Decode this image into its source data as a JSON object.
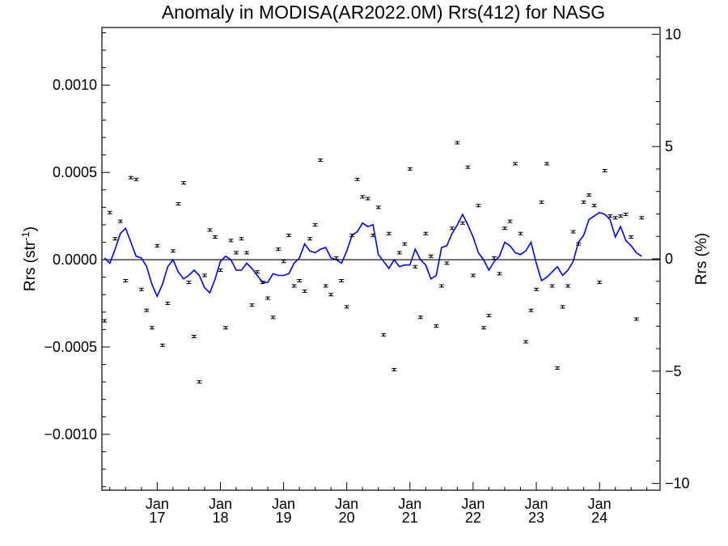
{
  "chart_data": {
    "type": "scatter",
    "title": "Anomaly in MODISA(AR2022.0M) Rrs(412) for NASG",
    "ylabel_left": "Rrs (str",
    "ylabel_left_sup": "-1",
    "ylabel_left_close": ")",
    "ylabel_right": "Rrs (%)",
    "x_start": "2016-03",
    "x_end": "2024-12",
    "ylim": [
      -0.00132,
      0.00133
    ],
    "ylim_right": [
      -10.3,
      10.3
    ],
    "zero_line": true,
    "legend": "none",
    "yticks_left": [
      {
        "value": 0.001,
        "label": "0.0010"
      },
      {
        "value": 0.0005,
        "label": "0.0005"
      },
      {
        "value": 0.0,
        "label": "0.0000"
      },
      {
        "value": -0.0005,
        "label": "−0.0005"
      },
      {
        "value": -0.001,
        "label": "−0.0010"
      }
    ],
    "yticks_right": [
      {
        "value": 10,
        "label": "10"
      },
      {
        "value": 5,
        "label": "5"
      },
      {
        "value": 0,
        "label": "0"
      },
      {
        "value": -5,
        "label": "−5"
      },
      {
        "value": -10,
        "label": "−10"
      }
    ],
    "xticks": [
      {
        "month": "2017-01",
        "line1": "Jan",
        "line2": "17"
      },
      {
        "month": "2018-01",
        "line1": "Jan",
        "line2": "18"
      },
      {
        "month": "2019-01",
        "line1": "Jan",
        "line2": "19"
      },
      {
        "month": "2020-01",
        "line1": "Jan",
        "line2": "20"
      },
      {
        "month": "2021-01",
        "line1": "Jan",
        "line2": "21"
      },
      {
        "month": "2022-01",
        "line1": "Jan",
        "line2": "22"
      },
      {
        "month": "2023-01",
        "line1": "Jan",
        "line2": "23"
      },
      {
        "month": "2024-01",
        "line1": "Jan",
        "line2": "24"
      }
    ],
    "series": [
      {
        "kind": "monthly_points_with_error_bars",
        "color": "#000000",
        "points": [
          {
            "month": "2016-03",
            "y": -0.00035
          },
          {
            "month": "2016-04",
            "y": 0.00027
          },
          {
            "month": "2016-05",
            "y": 0.00012
          },
          {
            "month": "2016-06",
            "y": 0.00022
          },
          {
            "month": "2016-07",
            "y": -0.00012
          },
          {
            "month": "2016-08",
            "y": 0.00047
          },
          {
            "month": "2016-09",
            "y": 0.00046
          },
          {
            "month": "2016-10",
            "y": -0.00017
          },
          {
            "month": "2016-11",
            "y": -0.00029
          },
          {
            "month": "2016-12",
            "y": -0.00039
          },
          {
            "month": "2017-01",
            "y": 8e-05
          },
          {
            "month": "2017-02",
            "y": -0.00049
          },
          {
            "month": "2017-03",
            "y": -0.00025
          },
          {
            "month": "2017-04",
            "y": 5e-05
          },
          {
            "month": "2017-05",
            "y": 0.00032
          },
          {
            "month": "2017-06",
            "y": 0.00044
          },
          {
            "month": "2017-07",
            "y": -0.00013
          },
          {
            "month": "2017-08",
            "y": -0.00044
          },
          {
            "month": "2017-09",
            "y": -0.0007
          },
          {
            "month": "2017-10",
            "y": -9e-05
          },
          {
            "month": "2017-11",
            "y": 0.00017
          },
          {
            "month": "2017-12",
            "y": 0.00013
          },
          {
            "month": "2018-01",
            "y": -6e-05
          },
          {
            "month": "2018-02",
            "y": -0.00039
          },
          {
            "month": "2018-03",
            "y": 0.00011
          },
          {
            "month": "2018-04",
            "y": 4e-05
          },
          {
            "month": "2018-05",
            "y": 0.00012
          },
          {
            "month": "2018-06",
            "y": 4e-05
          },
          {
            "month": "2018-07",
            "y": -0.00026
          },
          {
            "month": "2018-08",
            "y": -7e-05
          },
          {
            "month": "2018-09",
            "y": -0.00013
          },
          {
            "month": "2018-10",
            "y": -0.00022
          },
          {
            "month": "2018-11",
            "y": -0.00033
          },
          {
            "month": "2018-12",
            "y": 6e-05
          },
          {
            "month": "2019-01",
            "y": -1e-05
          },
          {
            "month": "2019-02",
            "y": 0.00014
          },
          {
            "month": "2019-03",
            "y": -0.00015
          },
          {
            "month": "2019-04",
            "y": -0.00012
          },
          {
            "month": "2019-05",
            "y": -0.00018
          },
          {
            "month": "2019-06",
            "y": 0.00012
          },
          {
            "month": "2019-07",
            "y": 0.0002
          },
          {
            "month": "2019-08",
            "y": 0.00057
          },
          {
            "month": "2019-09",
            "y": -0.00015
          },
          {
            "month": "2019-10",
            "y": -0.0002
          },
          {
            "month": "2019-11",
            "y": 1e-05
          },
          {
            "month": "2019-12",
            "y": -0.00012
          },
          {
            "month": "2020-01",
            "y": -0.00027
          },
          {
            "month": "2020-02",
            "y": 0.00014
          },
          {
            "month": "2020-03",
            "y": 0.00046
          },
          {
            "month": "2020-04",
            "y": 0.00036
          },
          {
            "month": "2020-05",
            "y": 0.00035
          },
          {
            "month": "2020-06",
            "y": 0.00014
          },
          {
            "month": "2020-07",
            "y": 0.0003
          },
          {
            "month": "2020-08",
            "y": -0.00043
          },
          {
            "month": "2020-09",
            "y": 0.00015
          },
          {
            "month": "2020-10",
            "y": -0.00063
          },
          {
            "month": "2020-11",
            "y": 4e-05
          },
          {
            "month": "2020-12",
            "y": 9e-05
          },
          {
            "month": "2021-01",
            "y": 0.00052
          },
          {
            "month": "2021-02",
            "y": -4e-05
          },
          {
            "month": "2021-03",
            "y": -0.00033
          },
          {
            "month": "2021-04",
            "y": 0.00015
          },
          {
            "month": "2021-05",
            "y": 2e-05
          },
          {
            "month": "2021-06",
            "y": -0.00038
          },
          {
            "month": "2021-07",
            "y": -0.00015
          },
          {
            "month": "2021-08",
            "y": -2e-05
          },
          {
            "month": "2021-09",
            "y": 0.00018
          },
          {
            "month": "2021-10",
            "y": 0.00067
          },
          {
            "month": "2021-11",
            "y": 0.00021
          },
          {
            "month": "2021-12",
            "y": 0.00053
          },
          {
            "month": "2022-01",
            "y": -9e-05
          },
          {
            "month": "2022-02",
            "y": 0.00031
          },
          {
            "month": "2022-03",
            "y": -0.00039
          },
          {
            "month": "2022-04",
            "y": -0.00032
          },
          {
            "month": "2022-05",
            "y": 1e-05
          },
          {
            "month": "2022-06",
            "y": -8e-05
          },
          {
            "month": "2022-07",
            "y": 0.00018
          },
          {
            "month": "2022-08",
            "y": 0.00022
          },
          {
            "month": "2022-09",
            "y": 0.00055
          },
          {
            "month": "2022-10",
            "y": 0.00015
          },
          {
            "month": "2022-11",
            "y": -0.00047
          },
          {
            "month": "2022-12",
            "y": -0.00029
          },
          {
            "month": "2023-01",
            "y": -0.00017
          },
          {
            "month": "2023-02",
            "y": 0.00033
          },
          {
            "month": "2023-03",
            "y": 0.00055
          },
          {
            "month": "2023-04",
            "y": -0.00015
          },
          {
            "month": "2023-05",
            "y": -0.00062
          },
          {
            "month": "2023-06",
            "y": -0.00027
          },
          {
            "month": "2023-07",
            "y": -0.00015
          },
          {
            "month": "2023-08",
            "y": 0.00016
          },
          {
            "month": "2023-09",
            "y": 9e-05
          },
          {
            "month": "2023-10",
            "y": 0.00033
          },
          {
            "month": "2023-11",
            "y": 0.00037
          },
          {
            "month": "2023-12",
            "y": 0.00031
          },
          {
            "month": "2024-01",
            "y": -0.00013
          },
          {
            "month": "2024-02",
            "y": 0.00051
          },
          {
            "month": "2024-03",
            "y": 0.00025
          },
          {
            "month": "2024-04",
            "y": 0.00024
          },
          {
            "month": "2024-05",
            "y": 0.00025
          },
          {
            "month": "2024-06",
            "y": 0.00026
          },
          {
            "month": "2024-07",
            "y": 0.00013
          },
          {
            "month": "2024-08",
            "y": -0.00034
          },
          {
            "month": "2024-09",
            "y": 0.00024
          }
        ]
      },
      {
        "kind": "smoothed_line",
        "color": "#0000ee",
        "points": [
          {
            "month": "2016-03",
            "y": 1e-05
          },
          {
            "month": "2016-04",
            "y": -2e-05
          },
          {
            "month": "2016-05",
            "y": 6e-05
          },
          {
            "month": "2016-06",
            "y": 0.00015
          },
          {
            "month": "2016-07",
            "y": 0.00018
          },
          {
            "month": "2016-08",
            "y": 0.0001
          },
          {
            "month": "2016-09",
            "y": 2e-05
          },
          {
            "month": "2016-10",
            "y": 1e-05
          },
          {
            "month": "2016-11",
            "y": -4e-05
          },
          {
            "month": "2016-12",
            "y": -0.00014
          },
          {
            "month": "2017-01",
            "y": -0.00021
          },
          {
            "month": "2017-02",
            "y": -0.00014
          },
          {
            "month": "2017-03",
            "y": -4e-05
          },
          {
            "month": "2017-04",
            "y": 0.0
          },
          {
            "month": "2017-05",
            "y": -7e-05
          },
          {
            "month": "2017-06",
            "y": -0.00011
          },
          {
            "month": "2017-07",
            "y": -9e-05
          },
          {
            "month": "2017-08",
            "y": -6e-05
          },
          {
            "month": "2017-09",
            "y": -9e-05
          },
          {
            "month": "2017-10",
            "y": -0.00016
          },
          {
            "month": "2017-11",
            "y": -0.00019
          },
          {
            "month": "2017-12",
            "y": -0.00011
          },
          {
            "month": "2018-01",
            "y": -1e-05
          },
          {
            "month": "2018-02",
            "y": 2e-05
          },
          {
            "month": "2018-03",
            "y": 0.0
          },
          {
            "month": "2018-04",
            "y": -6e-05
          },
          {
            "month": "2018-05",
            "y": -6e-05
          },
          {
            "month": "2018-06",
            "y": -2e-05
          },
          {
            "month": "2018-07",
            "y": -5e-05
          },
          {
            "month": "2018-08",
            "y": -9e-05
          },
          {
            "month": "2018-09",
            "y": -0.00013
          },
          {
            "month": "2018-10",
            "y": -0.00013
          },
          {
            "month": "2018-11",
            "y": -8e-05
          },
          {
            "month": "2018-12",
            "y": -9e-05
          },
          {
            "month": "2019-01",
            "y": -9e-05
          },
          {
            "month": "2019-02",
            "y": -8e-05
          },
          {
            "month": "2019-03",
            "y": -2e-05
          },
          {
            "month": "2019-04",
            "y": 1e-05
          },
          {
            "month": "2019-05",
            "y": 9e-05
          },
          {
            "month": "2019-06",
            "y": 5e-05
          },
          {
            "month": "2019-07",
            "y": 4e-05
          },
          {
            "month": "2019-08",
            "y": 6e-05
          },
          {
            "month": "2019-09",
            "y": 7e-05
          },
          {
            "month": "2019-10",
            "y": 1e-05
          },
          {
            "month": "2019-11",
            "y": 0.0
          },
          {
            "month": "2019-12",
            "y": -2e-05
          },
          {
            "month": "2020-01",
            "y": 5e-05
          },
          {
            "month": "2020-02",
            "y": 0.00014
          },
          {
            "month": "2020-03",
            "y": 0.00016
          },
          {
            "month": "2020-04",
            "y": 0.00021
          },
          {
            "month": "2020-05",
            "y": 0.00019
          },
          {
            "month": "2020-06",
            "y": 0.0002
          },
          {
            "month": "2020-07",
            "y": 3e-05
          },
          {
            "month": "2020-08",
            "y": -1e-05
          },
          {
            "month": "2020-09",
            "y": -5e-05
          },
          {
            "month": "2020-10",
            "y": 0.0
          },
          {
            "month": "2020-11",
            "y": -4e-05
          },
          {
            "month": "2020-12",
            "y": -3e-05
          },
          {
            "month": "2021-01",
            "y": -3e-05
          },
          {
            "month": "2021-02",
            "y": 6e-05
          },
          {
            "month": "2021-03",
            "y": 0.0
          },
          {
            "month": "2021-04",
            "y": -3e-05
          },
          {
            "month": "2021-05",
            "y": -0.00011
          },
          {
            "month": "2021-06",
            "y": -9e-05
          },
          {
            "month": "2021-07",
            "y": 7e-05
          },
          {
            "month": "2021-08",
            "y": 8e-05
          },
          {
            "month": "2021-09",
            "y": 0.00015
          },
          {
            "month": "2021-10",
            "y": 0.0002
          },
          {
            "month": "2021-11",
            "y": 0.00026
          },
          {
            "month": "2021-12",
            "y": 0.0002
          },
          {
            "month": "2022-01",
            "y": 0.00013
          },
          {
            "month": "2022-02",
            "y": 4e-05
          },
          {
            "month": "2022-03",
            "y": 0.0
          },
          {
            "month": "2022-04",
            "y": -6e-05
          },
          {
            "month": "2022-05",
            "y": -1e-05
          },
          {
            "month": "2022-06",
            "y": 2e-05
          },
          {
            "month": "2022-07",
            "y": 0.0001
          },
          {
            "month": "2022-08",
            "y": 8e-05
          },
          {
            "month": "2022-09",
            "y": 4e-05
          },
          {
            "month": "2022-10",
            "y": 3e-05
          },
          {
            "month": "2022-11",
            "y": 5e-05
          },
          {
            "month": "2022-12",
            "y": 0.0001
          },
          {
            "month": "2023-01",
            "y": -2e-05
          },
          {
            "month": "2023-02",
            "y": -0.00012
          },
          {
            "month": "2023-03",
            "y": -0.0001
          },
          {
            "month": "2023-04",
            "y": -7e-05
          },
          {
            "month": "2023-05",
            "y": -4e-05
          },
          {
            "month": "2023-06",
            "y": -9e-05
          },
          {
            "month": "2023-07",
            "y": -6e-05
          },
          {
            "month": "2023-08",
            "y": -1e-05
          },
          {
            "month": "2023-09",
            "y": 0.0001
          },
          {
            "month": "2023-10",
            "y": 0.00014
          },
          {
            "month": "2023-11",
            "y": 0.00023
          },
          {
            "month": "2023-12",
            "y": 0.00025
          },
          {
            "month": "2024-01",
            "y": 0.00027
          },
          {
            "month": "2024-02",
            "y": 0.00026
          },
          {
            "month": "2024-03",
            "y": 0.00023
          },
          {
            "month": "2024-04",
            "y": 0.00013
          },
          {
            "month": "2024-05",
            "y": 0.00019
          },
          {
            "month": "2024-06",
            "y": 0.00011
          },
          {
            "month": "2024-07",
            "y": 8e-05
          },
          {
            "month": "2024-08",
            "y": 4e-05
          },
          {
            "month": "2024-09",
            "y": 2e-05
          }
        ]
      }
    ]
  }
}
